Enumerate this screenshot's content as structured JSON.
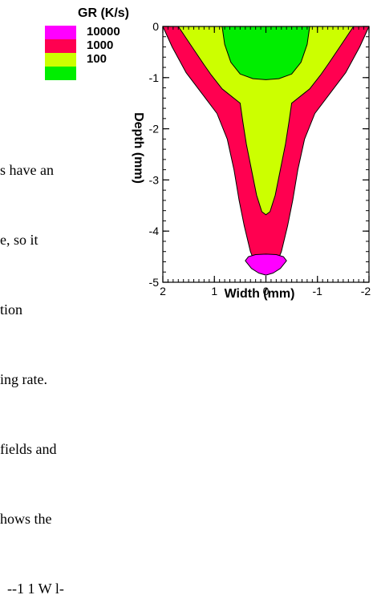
{
  "chart_data": {
    "type": "area",
    "legend": {
      "title": "GR (K/s)",
      "placement": "top-left",
      "entries": [
        {
          "label": "10000",
          "color": "#FF00FF"
        },
        {
          "label": "1000",
          "color": "#FF0050"
        },
        {
          "label": "100",
          "color": "#CCFF00"
        },
        {
          "label": "",
          "color": "#00EE00"
        }
      ]
    },
    "xlabel": "Width (mm)",
    "ylabel": "Depth (mm)",
    "xlim": [
      2,
      -2
    ],
    "ylim": [
      -5,
      0
    ],
    "x_ticks": [
      {
        "value": 2,
        "label": "2"
      },
      {
        "value": 1,
        "label": "1"
      },
      {
        "value": 0,
        "label": "0"
      },
      {
        "value": -1,
        "label": "-1"
      },
      {
        "value": -2,
        "label": "-2"
      }
    ],
    "y_ticks": [
      {
        "value": 0,
        "label": "0"
      },
      {
        "value": -1,
        "label": "-1"
      },
      {
        "value": -2,
        "label": "-2"
      },
      {
        "value": -3,
        "label": "-3"
      },
      {
        "value": -4,
        "label": "-4"
      },
      {
        "value": -5,
        "label": "-5"
      }
    ],
    "regions": [
      {
        "name": "melt-pool-outer",
        "color": "#FF0050",
        "points": [
          [
            2,
            0
          ],
          [
            1.82,
            -0.4
          ],
          [
            1.55,
            -0.9
          ],
          [
            1.25,
            -1.3
          ],
          [
            0.95,
            -1.7
          ],
          [
            0.75,
            -2.2
          ],
          [
            0.62,
            -2.8
          ],
          [
            0.52,
            -3.4
          ],
          [
            0.42,
            -3.9
          ],
          [
            0.3,
            -4.4
          ],
          [
            0.16,
            -4.75
          ],
          [
            0,
            -4.85
          ],
          [
            -0.16,
            -4.75
          ],
          [
            -0.3,
            -4.4
          ],
          [
            -0.42,
            -3.9
          ],
          [
            -0.52,
            -3.4
          ],
          [
            -0.62,
            -2.8
          ],
          [
            -0.75,
            -2.2
          ],
          [
            -0.95,
            -1.7
          ],
          [
            -1.25,
            -1.3
          ],
          [
            -1.55,
            -0.9
          ],
          [
            -1.82,
            -0.4
          ],
          [
            -2,
            0
          ]
        ]
      },
      {
        "name": "gr-1000-zone",
        "color": "#CCFF00",
        "points": [
          [
            1.7,
            0
          ],
          [
            1.5,
            -0.3
          ],
          [
            1.22,
            -0.72
          ],
          [
            1.06,
            -0.95
          ],
          [
            0.85,
            -1.22
          ],
          [
            0.5,
            -1.5
          ],
          [
            0.45,
            -1.85
          ],
          [
            0.38,
            -2.3
          ],
          [
            0.28,
            -2.8
          ],
          [
            0.18,
            -3.3
          ],
          [
            0.08,
            -3.62
          ],
          [
            0,
            -3.68
          ],
          [
            -0.08,
            -3.62
          ],
          [
            -0.18,
            -3.3
          ],
          [
            -0.28,
            -2.8
          ],
          [
            -0.38,
            -2.3
          ],
          [
            -0.45,
            -1.85
          ],
          [
            -0.5,
            -1.5
          ],
          [
            -0.85,
            -1.22
          ],
          [
            -1.06,
            -0.95
          ],
          [
            -1.22,
            -0.72
          ],
          [
            -1.5,
            -0.3
          ],
          [
            -1.7,
            0
          ]
        ]
      },
      {
        "name": "gr-100-zone",
        "color": "#00EE00",
        "points": [
          [
            0.85,
            0
          ],
          [
            0.8,
            -0.35
          ],
          [
            0.68,
            -0.7
          ],
          [
            0.5,
            -0.93
          ],
          [
            0.25,
            -1.02
          ],
          [
            0,
            -1.04
          ],
          [
            -0.25,
            -1.02
          ],
          [
            -0.5,
            -0.93
          ],
          [
            -0.68,
            -0.7
          ],
          [
            -0.8,
            -0.35
          ],
          [
            -0.85,
            0
          ]
        ]
      },
      {
        "name": "gr-10000-zone",
        "color": "#FF00FF",
        "points": [
          [
            0.4,
            -4.58
          ],
          [
            0.34,
            -4.5
          ],
          [
            0.2,
            -4.46
          ],
          [
            0,
            -4.45
          ],
          [
            -0.2,
            -4.46
          ],
          [
            -0.34,
            -4.5
          ],
          [
            -0.4,
            -4.58
          ],
          [
            -0.28,
            -4.73
          ],
          [
            -0.14,
            -4.82
          ],
          [
            0,
            -4.86
          ],
          [
            0.14,
            -4.82
          ],
          [
            0.28,
            -4.73
          ]
        ]
      }
    ]
  },
  "body_text_lines": [
    "s have an",
    "e, so it",
    "tion",
    "ing rate.",
    "fields and",
    "hows the",
    "  --1 1 W l-"
  ]
}
